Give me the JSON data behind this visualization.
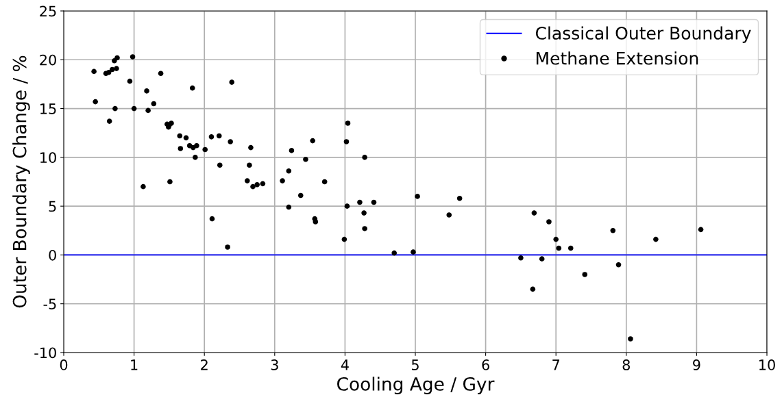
{
  "chart_data": {
    "type": "scatter",
    "xlabel": "Cooling Age / Gyr",
    "ylabel": "Outer Boundary Change / %",
    "xlim": [
      0,
      10
    ],
    "ylim": [
      -10,
      25
    ],
    "xticks": [
      0,
      1,
      2,
      3,
      4,
      5,
      6,
      7,
      8,
      9,
      10
    ],
    "yticks": [
      -10,
      -5,
      0,
      5,
      10,
      15,
      20,
      25
    ],
    "grid": true,
    "legend": "top right",
    "marker": "circle",
    "ref_lines": [
      {
        "axis": "y",
        "value": 0,
        "label": "Classical Outer Boundary",
        "color": "#0000ff",
        "line_style": "solid"
      }
    ],
    "series": [
      {
        "name": "Methane Extension",
        "color": "#000000",
        "x": [
          0.43,
          0.45,
          0.6,
          0.64,
          0.65,
          0.69,
          0.72,
          0.73,
          0.75,
          0.76,
          0.94,
          0.98,
          1.0,
          1.13,
          1.18,
          1.2,
          1.28,
          1.38,
          1.47,
          1.49,
          1.5,
          1.51,
          1.53,
          1.65,
          1.66,
          1.74,
          1.79,
          1.83,
          1.84,
          1.87,
          1.89,
          2.01,
          2.1,
          2.11,
          2.21,
          2.22,
          2.33,
          2.37,
          2.39,
          2.61,
          2.64,
          2.66,
          2.69,
          2.75,
          2.83,
          3.11,
          3.2,
          3.2,
          3.24,
          3.37,
          3.44,
          3.54,
          3.57,
          3.58,
          3.71,
          3.99,
          4.02,
          4.03,
          4.04,
          4.21,
          4.27,
          4.28,
          4.28,
          4.41,
          4.7,
          4.97,
          5.03,
          5.48,
          5.63,
          6.5,
          6.67,
          6.69,
          6.8,
          6.9,
          7.0,
          7.04,
          7.21,
          7.41,
          7.81,
          7.89,
          8.06,
          8.42,
          9.06
        ],
        "values": [
          18.8,
          15.7,
          18.6,
          18.7,
          13.7,
          19.0,
          19.9,
          15.0,
          19.1,
          20.2,
          17.8,
          20.3,
          15.0,
          7.0,
          16.8,
          14.8,
          15.5,
          18.6,
          13.4,
          13.1,
          13.3,
          7.5,
          13.5,
          12.2,
          10.9,
          12.0,
          11.2,
          17.1,
          11.0,
          10.0,
          11.2,
          10.8,
          12.1,
          3.7,
          12.2,
          9.2,
          0.8,
          11.6,
          17.7,
          7.6,
          9.2,
          11.0,
          7.0,
          7.2,
          7.3,
          7.6,
          4.9,
          8.6,
          10.7,
          6.1,
          9.8,
          11.7,
          3.7,
          3.4,
          7.5,
          1.6,
          11.6,
          5.0,
          13.5,
          5.4,
          4.3,
          2.7,
          10.0,
          5.4,
          0.2,
          0.3,
          6.0,
          4.1,
          5.8,
          -0.3,
          -3.5,
          4.3,
          -0.4,
          3.4,
          1.6,
          0.7,
          0.7,
          -2.0,
          2.5,
          -1.0,
          -8.6,
          1.6,
          2.6
        ]
      }
    ]
  }
}
